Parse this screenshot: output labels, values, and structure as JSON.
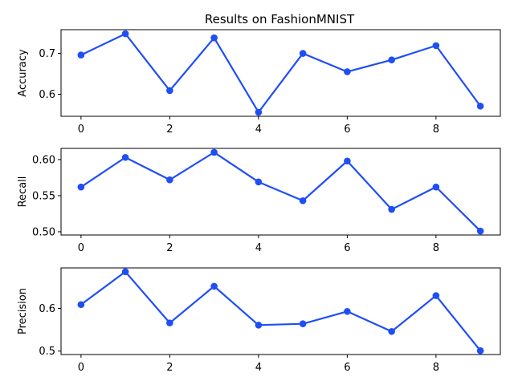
{
  "chart_data": {
    "title": "Results on FashionMNIST",
    "type": "line",
    "line_color": "#1f4ef5",
    "grid": false,
    "subplots": [
      {
        "ylabel": "Accuracy",
        "x": [
          0,
          1,
          2,
          3,
          4,
          5,
          6,
          7,
          8,
          9
        ],
        "values": [
          0.696,
          0.748,
          0.609,
          0.738,
          0.556,
          0.7,
          0.655,
          0.684,
          0.719,
          0.571
        ],
        "xlim": [
          -0.45,
          9.45
        ],
        "ylim": [
          0.546,
          0.758
        ],
        "xticks": [
          0,
          2,
          4,
          6,
          8
        ],
        "xtick_labels": [
          "0",
          "2",
          "4",
          "6",
          "8"
        ],
        "yticks": [
          0.6,
          0.7
        ],
        "ytick_labels": [
          "0.6",
          "0.7"
        ]
      },
      {
        "ylabel": "Recall",
        "x": [
          0,
          1,
          2,
          3,
          4,
          5,
          6,
          7,
          8,
          9
        ],
        "values": [
          0.562,
          0.603,
          0.572,
          0.61,
          0.569,
          0.543,
          0.598,
          0.531,
          0.562,
          0.501
        ],
        "xlim": [
          -0.45,
          9.45
        ],
        "ylim": [
          0.4955,
          0.6155
        ],
        "xticks": [
          0,
          2,
          4,
          6,
          8
        ],
        "xtick_labels": [
          "0",
          "2",
          "4",
          "6",
          "8"
        ],
        "yticks": [
          0.5,
          0.55,
          0.6
        ],
        "ytick_labels": [
          "0.50",
          "0.55",
          "0.60"
        ]
      },
      {
        "ylabel": "Precision",
        "x": [
          0,
          1,
          2,
          3,
          4,
          5,
          6,
          7,
          8,
          9
        ],
        "values": [
          0.609,
          0.686,
          0.566,
          0.652,
          0.561,
          0.564,
          0.593,
          0.546,
          0.63,
          0.501
        ],
        "xlim": [
          -0.45,
          9.45
        ],
        "ylim": [
          0.492,
          0.695
        ],
        "xticks": [
          0,
          2,
          4,
          6,
          8
        ],
        "xtick_labels": [
          "0",
          "2",
          "4",
          "6",
          "8"
        ],
        "yticks": [
          0.5,
          0.6
        ],
        "ytick_labels": [
          "0.5",
          "0.6"
        ]
      }
    ]
  }
}
